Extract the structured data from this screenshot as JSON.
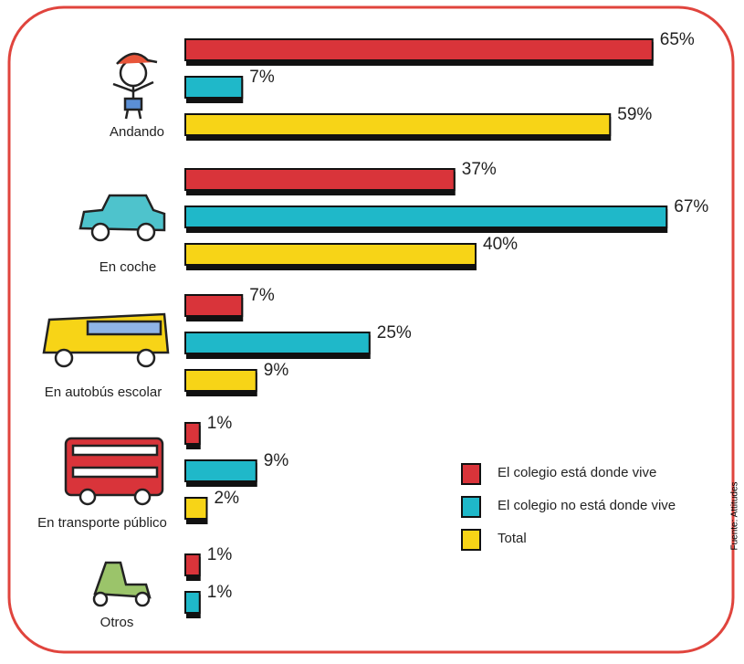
{
  "chart_data": {
    "type": "bar",
    "orientation": "horizontal",
    "categories": [
      "Andando",
      "En coche",
      "En autobús escolar",
      "En transporte público",
      "Otros"
    ],
    "series": [
      {
        "name": "El colegio está donde vive",
        "color": "#d9343a",
        "values": [
          65,
          37,
          7,
          1,
          1
        ],
        "value_labels": [
          "65%",
          "37%",
          "7%",
          "1%",
          "1%"
        ]
      },
      {
        "name": "El colegio no está donde vive",
        "color": "#1fb8c9",
        "values": [
          7,
          67,
          25,
          9,
          1
        ],
        "value_labels": [
          "7%",
          "67%",
          "25%",
          "9%",
          "1%"
        ]
      },
      {
        "name": "Total",
        "color": "#f7d417",
        "values": [
          59,
          40,
          9,
          2,
          null
        ],
        "value_labels": [
          "59%",
          "40%",
          "9%",
          "2%",
          null
        ]
      }
    ],
    "source": "Fuente: Attitudes"
  }
}
